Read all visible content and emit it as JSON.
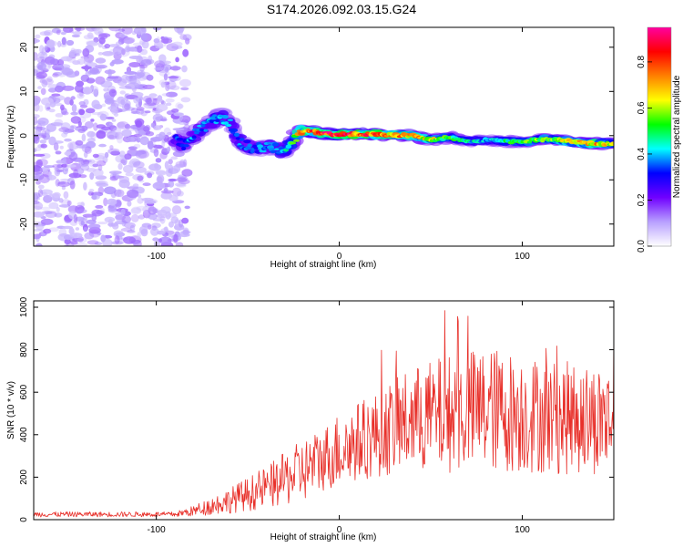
{
  "title": "S174.2026.092.03.15.G24",
  "chart_data": [
    {
      "type": "heatmap",
      "title": "S174.2026.092.03.15.G24",
      "xlabel": "Height of straight line (km)",
      "ylabel": "Frequency (Hz)",
      "xlim": [
        -167,
        150
      ],
      "ylim": [
        -25,
        24.5
      ],
      "xticks": [
        -100,
        0,
        100
      ],
      "yticks": [
        -20,
        -10,
        0,
        10,
        20
      ],
      "grid": false,
      "colorbar": {
        "label": "Normalized spectral amplitude",
        "range": [
          0,
          0.95
        ],
        "ticks": [
          0.0,
          0.2,
          0.4,
          0.6,
          0.8
        ],
        "colormap": [
          "#ffffff",
          "#b8a0ff",
          "#7000ff",
          "#0000ff",
          "#00ffff",
          "#00ff00",
          "#ffff00",
          "#ff8000",
          "#ff0000",
          "#ff00a0"
        ]
      },
      "noise_region": {
        "x_range": [
          -167,
          -83
        ],
        "amplitude": 0.1
      },
      "ridge_center_frequency": [
        {
          "x": -90,
          "y": -1
        },
        {
          "x": -85,
          "y": -2
        },
        {
          "x": -80,
          "y": 0
        },
        {
          "x": -75,
          "y": 1.5
        },
        {
          "x": -70,
          "y": 3
        },
        {
          "x": -65,
          "y": 4.5
        },
        {
          "x": -60,
          "y": 3
        },
        {
          "x": -55,
          "y": -1
        },
        {
          "x": -50,
          "y": -2.5
        },
        {
          "x": -45,
          "y": -3
        },
        {
          "x": -40,
          "y": -2.5
        },
        {
          "x": -35,
          "y": -3
        },
        {
          "x": -30,
          "y": -3.5
        },
        {
          "x": -25,
          "y": -1
        },
        {
          "x": -20,
          "y": 1
        },
        {
          "x": -15,
          "y": 1
        },
        {
          "x": -10,
          "y": 0.5
        },
        {
          "x": 0,
          "y": 0.3
        },
        {
          "x": 20,
          "y": 0.3
        },
        {
          "x": 40,
          "y": 0
        },
        {
          "x": 50,
          "y": -1
        },
        {
          "x": 60,
          "y": -0.3
        },
        {
          "x": 70,
          "y": -1.3
        },
        {
          "x": 80,
          "y": -1
        },
        {
          "x": 90,
          "y": -1.2
        },
        {
          "x": 100,
          "y": -1.5
        },
        {
          "x": 110,
          "y": -0.8
        },
        {
          "x": 120,
          "y": -1
        },
        {
          "x": 130,
          "y": -1.5
        },
        {
          "x": 140,
          "y": -1.8
        },
        {
          "x": 150,
          "y": -1.8
        }
      ],
      "ridge_amplitude": [
        {
          "x": -90,
          "a": 0.3
        },
        {
          "x": -70,
          "a": 0.35
        },
        {
          "x": -50,
          "a": 0.3
        },
        {
          "x": -30,
          "a": 0.35
        },
        {
          "x": -20,
          "a": 0.75
        },
        {
          "x": 0,
          "a": 0.85
        },
        {
          "x": 40,
          "a": 0.7
        },
        {
          "x": 60,
          "a": 0.5
        },
        {
          "x": 80,
          "a": 0.35
        },
        {
          "x": 100,
          "a": 0.5
        },
        {
          "x": 120,
          "a": 0.6
        },
        {
          "x": 140,
          "a": 0.7
        },
        {
          "x": 150,
          "a": 0.6
        }
      ]
    },
    {
      "type": "line",
      "xlabel": "Height of straight line (km)",
      "ylabel": "SNR (10 * v/v)",
      "xlim": [
        -167,
        150
      ],
      "ylim": [
        0,
        1030
      ],
      "xticks": [
        -100,
        0,
        100
      ],
      "yticks": [
        0,
        200,
        400,
        600,
        800,
        1000
      ],
      "grid": false,
      "series": [
        {
          "name": "SNR",
          "color": "#e8302a",
          "envelope": [
            {
              "x": -167,
              "mean": 25,
              "spread": 12
            },
            {
              "x": -90,
              "mean": 25,
              "spread": 12
            },
            {
              "x": -80,
              "mean": 40,
              "spread": 25
            },
            {
              "x": -60,
              "mean": 90,
              "spread": 60
            },
            {
              "x": -40,
              "mean": 150,
              "spread": 100
            },
            {
              "x": -20,
              "mean": 230,
              "spread": 150
            },
            {
              "x": -10,
              "mean": 280,
              "spread": 150
            },
            {
              "x": 0,
              "mean": 330,
              "spread": 180
            },
            {
              "x": 20,
              "mean": 400,
              "spread": 200
            },
            {
              "x": 40,
              "mean": 470,
              "spread": 250
            },
            {
              "x": 60,
              "mean": 500,
              "spread": 280
            },
            {
              "x": 80,
              "mean": 520,
              "spread": 300
            },
            {
              "x": 100,
              "mean": 500,
              "spread": 280
            },
            {
              "x": 120,
              "mean": 480,
              "spread": 270
            },
            {
              "x": 150,
              "mean": 470,
              "spread": 260
            }
          ]
        }
      ]
    }
  ]
}
